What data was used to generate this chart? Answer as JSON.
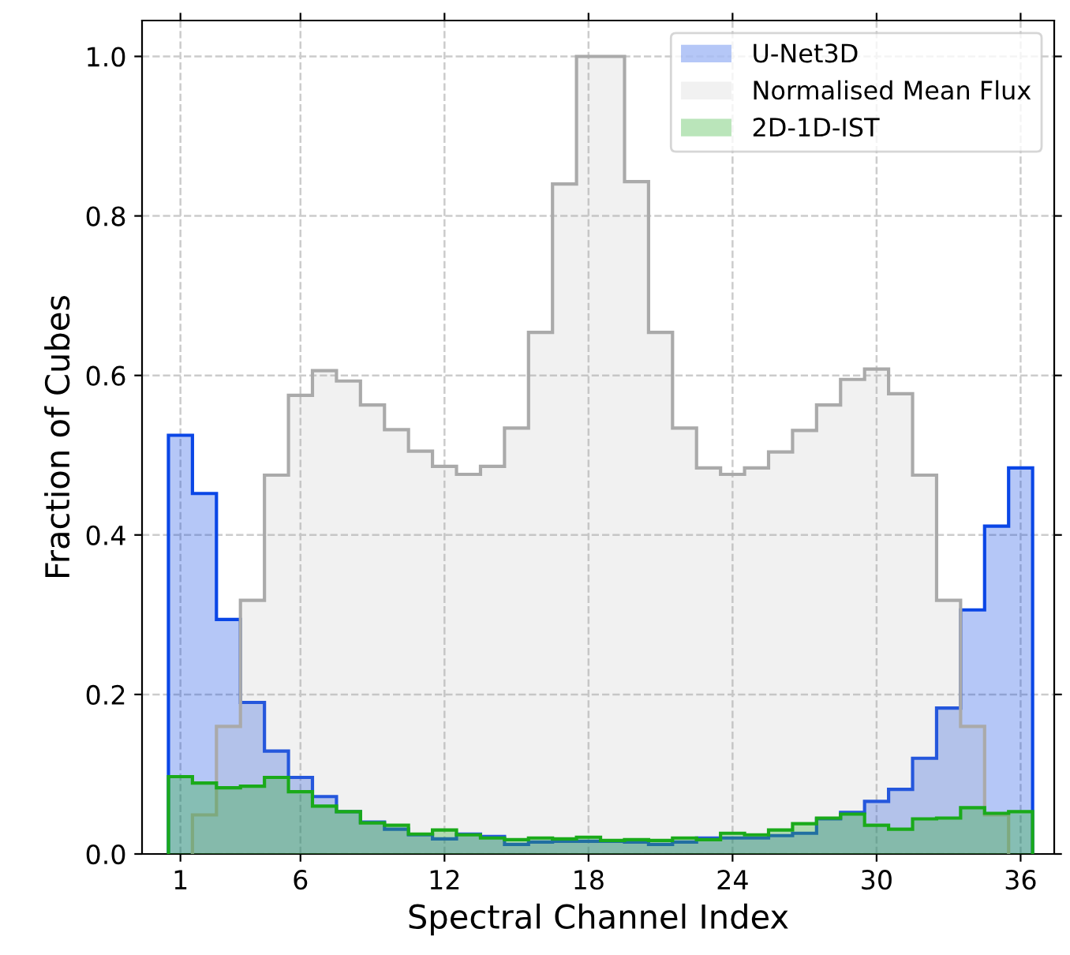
{
  "chart_data": {
    "type": "histogram",
    "xlabel": "Spectral Channel Index",
    "ylabel": "Fraction of Cubes",
    "bins": [
      0.5,
      1.5,
      2.5,
      3.5,
      4.5,
      5.5,
      6.5,
      7.5,
      8.5,
      9.5,
      10.5,
      11.5,
      12.5,
      13.5,
      14.5,
      15.5,
      16.5,
      17.5,
      18.5,
      19.5,
      20.5,
      21.5,
      22.5,
      23.5,
      24.5,
      25.5,
      26.5,
      27.5,
      28.5,
      29.5,
      30.5,
      31.5,
      32.5,
      33.5,
      34.5,
      35.5,
      36.5
    ],
    "series": [
      {
        "name": "U-Net3D",
        "color": "#0a46e6",
        "values": [
          0.525,
          0.452,
          0.294,
          0.19,
          0.129,
          0.096,
          0.072,
          0.053,
          0.04,
          0.031,
          0.024,
          0.019,
          0.025,
          0.022,
          0.012,
          0.015,
          0.016,
          0.016,
          0.016,
          0.015,
          0.012,
          0.015,
          0.02,
          0.02,
          0.02,
          0.023,
          0.026,
          0.044,
          0.052,
          0.066,
          0.081,
          0.12,
          0.183,
          0.306,
          0.411,
          0.484
        ]
      },
      {
        "name": "Normalised Mean Flux",
        "color": "#aaaaaa",
        "bins": [
          1.5,
          2.5,
          3.5,
          4.5,
          5.5,
          6.5,
          7.5,
          8.5,
          9.5,
          10.5,
          11.5,
          12.5,
          13.5,
          14.5,
          15.5,
          16.5,
          17.5,
          18.5,
          19.5,
          20.5,
          21.5,
          22.5,
          23.5,
          24.5,
          25.5,
          26.5,
          27.5,
          28.5,
          29.5,
          30.5,
          31.5,
          32.5,
          33.5,
          34.5,
          35.5
        ],
        "values": [
          0.049,
          0.16,
          0.318,
          0.475,
          0.575,
          0.606,
          0.593,
          0.563,
          0.532,
          0.505,
          0.486,
          0.476,
          0.486,
          0.534,
          0.654,
          0.84,
          1.0,
          1.0,
          0.843,
          0.654,
          0.534,
          0.484,
          0.476,
          0.484,
          0.504,
          0.531,
          0.563,
          0.595,
          0.608,
          0.577,
          0.475,
          0.318,
          0.16,
          0.049
        ]
      },
      {
        "name": "2D-1D-IST",
        "color": "#1aaa1a",
        "values": [
          0.097,
          0.089,
          0.083,
          0.085,
          0.096,
          0.078,
          0.06,
          0.053,
          0.039,
          0.036,
          0.025,
          0.03,
          0.024,
          0.02,
          0.018,
          0.02,
          0.019,
          0.021,
          0.017,
          0.018,
          0.017,
          0.02,
          0.018,
          0.026,
          0.024,
          0.03,
          0.038,
          0.045,
          0.05,
          0.036,
          0.031,
          0.044,
          0.045,
          0.058,
          0.051,
          0.053
        ]
      }
    ],
    "xlim": [
      -0.6,
      37.4
    ],
    "ylim": [
      0,
      1.045
    ],
    "xticks": [
      1,
      6,
      12,
      18,
      24,
      30,
      36
    ],
    "yticks": [
      {
        "value": 0,
        "label": "0.0"
      },
      {
        "value": 0.2,
        "label": "0.2"
      },
      {
        "value": 0.4,
        "label": "0.4"
      },
      {
        "value": 0.6,
        "label": "0.6"
      },
      {
        "value": 0.8,
        "label": "0.8"
      },
      {
        "value": 1.0,
        "label": "1.0"
      }
    ],
    "grid": true,
    "legend": "top right"
  }
}
